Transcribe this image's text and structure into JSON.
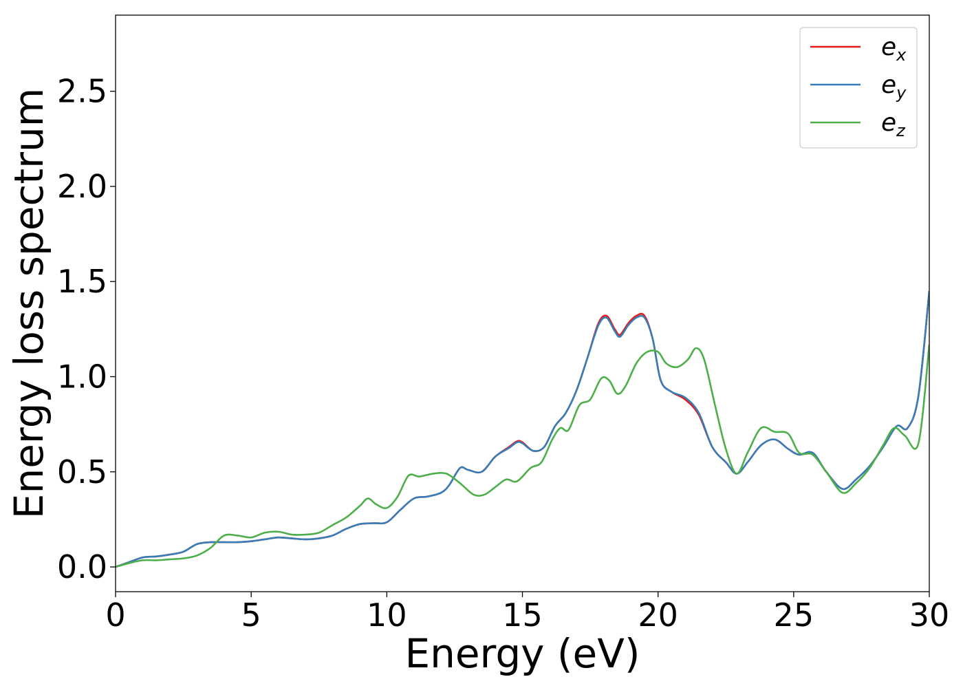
{
  "chart_data": {
    "type": "line",
    "title": "",
    "xlabel": "Energy (eV)",
    "ylabel": "Energy loss spectrum",
    "xlim": [
      0,
      30
    ],
    "ylim": [
      -0.13,
      2.9
    ],
    "xticks": [
      0,
      5,
      10,
      15,
      20,
      25,
      30
    ],
    "xtick_labels": [
      "0",
      "5",
      "10",
      "15",
      "20",
      "25",
      "30"
    ],
    "yticks": [
      0.0,
      0.5,
      1.0,
      1.5,
      2.0,
      2.5
    ],
    "ytick_labels": [
      "0.0",
      "0.5",
      "1.0",
      "1.5",
      "2.0",
      "2.5"
    ],
    "grid": false,
    "legend_position": "top-right",
    "colors": {
      "e_x": "#e41a1c",
      "e_y": "#377eb8",
      "e_z": "#4daf4a"
    },
    "series": [
      {
        "name": "e_x",
        "legend_main": "e",
        "legend_sub": "x",
        "color": "#e41a1c",
        "x": [
          0,
          0.5,
          1,
          1.5,
          2,
          2.5,
          3,
          3.5,
          4,
          4.5,
          5,
          5.5,
          6,
          6.5,
          7,
          7.5,
          8,
          8.5,
          9,
          9.5,
          10,
          10.5,
          11,
          11.5,
          12,
          12.3,
          12.7,
          13,
          13.5,
          14,
          14.5,
          14.8,
          15,
          15.4,
          15.8,
          16.2,
          16.6,
          17,
          17.4,
          17.8,
          18.1,
          18.4,
          18.6,
          18.9,
          19.2,
          19.5,
          19.8,
          20.1,
          20.5,
          21,
          21.5,
          22,
          22.5,
          22.9,
          23.3,
          23.8,
          24.3,
          24.8,
          25.2,
          25.7,
          26.2,
          26.8,
          27.3,
          27.8,
          28.3,
          28.8,
          29.2,
          29.6,
          30
        ],
        "y": [
          0.0,
          0.025,
          0.05,
          0.055,
          0.065,
          0.08,
          0.12,
          0.13,
          0.13,
          0.13,
          0.135,
          0.145,
          0.155,
          0.15,
          0.145,
          0.15,
          0.165,
          0.2,
          0.225,
          0.23,
          0.235,
          0.3,
          0.36,
          0.37,
          0.39,
          0.43,
          0.52,
          0.51,
          0.5,
          0.58,
          0.63,
          0.66,
          0.655,
          0.61,
          0.63,
          0.74,
          0.81,
          0.93,
          1.1,
          1.28,
          1.32,
          1.25,
          1.22,
          1.28,
          1.32,
          1.32,
          1.2,
          0.98,
          0.92,
          0.88,
          0.8,
          0.63,
          0.55,
          0.49,
          0.55,
          0.64,
          0.67,
          0.62,
          0.59,
          0.6,
          0.5,
          0.41,
          0.46,
          0.53,
          0.63,
          0.74,
          0.73,
          0.9,
          1.45
        ]
      },
      {
        "name": "e_y",
        "legend_main": "e",
        "legend_sub": "y",
        "color": "#377eb8",
        "x": [
          0,
          0.5,
          1,
          1.5,
          2,
          2.5,
          3,
          3.5,
          4,
          4.5,
          5,
          5.5,
          6,
          6.5,
          7,
          7.5,
          8,
          8.5,
          9,
          9.5,
          10,
          10.5,
          11,
          11.5,
          12,
          12.3,
          12.7,
          13,
          13.5,
          14,
          14.5,
          14.8,
          15,
          15.4,
          15.8,
          16.2,
          16.6,
          17,
          17.4,
          17.8,
          18.1,
          18.4,
          18.6,
          18.9,
          19.2,
          19.5,
          19.8,
          20.1,
          20.5,
          21,
          21.5,
          22,
          22.5,
          22.9,
          23.3,
          23.8,
          24.3,
          24.8,
          25.2,
          25.7,
          26.2,
          26.8,
          27.3,
          27.8,
          28.3,
          28.8,
          29.2,
          29.6,
          30
        ],
        "y": [
          0.0,
          0.025,
          0.05,
          0.055,
          0.065,
          0.08,
          0.12,
          0.13,
          0.13,
          0.13,
          0.135,
          0.145,
          0.155,
          0.15,
          0.145,
          0.15,
          0.165,
          0.2,
          0.225,
          0.23,
          0.235,
          0.3,
          0.36,
          0.37,
          0.39,
          0.43,
          0.52,
          0.51,
          0.5,
          0.58,
          0.625,
          0.655,
          0.65,
          0.61,
          0.63,
          0.74,
          0.81,
          0.93,
          1.1,
          1.27,
          1.31,
          1.24,
          1.21,
          1.27,
          1.31,
          1.31,
          1.2,
          0.98,
          0.92,
          0.89,
          0.81,
          0.63,
          0.55,
          0.49,
          0.55,
          0.64,
          0.67,
          0.62,
          0.59,
          0.6,
          0.5,
          0.41,
          0.46,
          0.53,
          0.63,
          0.74,
          0.73,
          0.9,
          1.45
        ]
      },
      {
        "name": "e_z",
        "legend_main": "e",
        "legend_sub": "z",
        "color": "#4daf4a",
        "x": [
          0,
          0.5,
          1,
          1.5,
          2,
          2.5,
          3,
          3.5,
          4,
          4.5,
          5,
          5.5,
          6,
          6.5,
          7,
          7.5,
          8,
          8.5,
          9,
          9.3,
          9.6,
          10,
          10.4,
          10.8,
          11.2,
          11.7,
          12.2,
          12.7,
          13.2,
          13.6,
          14,
          14.4,
          14.8,
          15.3,
          15.7,
          16.1,
          16.4,
          16.7,
          17.1,
          17.5,
          17.9,
          18.2,
          18.5,
          18.8,
          19.2,
          19.6,
          20,
          20.3,
          20.7,
          21.1,
          21.4,
          21.7,
          22.1,
          22.5,
          22.9,
          23.3,
          23.8,
          24.3,
          24.8,
          25.2,
          25.7,
          26.2,
          26.8,
          27.3,
          27.8,
          28.3,
          28.7,
          29.1,
          29.6,
          30
        ],
        "y": [
          0.0,
          0.02,
          0.035,
          0.035,
          0.04,
          0.045,
          0.06,
          0.1,
          0.165,
          0.165,
          0.155,
          0.18,
          0.185,
          0.17,
          0.17,
          0.18,
          0.22,
          0.26,
          0.32,
          0.36,
          0.33,
          0.31,
          0.37,
          0.48,
          0.475,
          0.49,
          0.49,
          0.44,
          0.38,
          0.38,
          0.42,
          0.46,
          0.45,
          0.52,
          0.55,
          0.67,
          0.73,
          0.72,
          0.85,
          0.88,
          0.99,
          0.98,
          0.91,
          0.95,
          1.07,
          1.13,
          1.13,
          1.07,
          1.05,
          1.09,
          1.15,
          1.09,
          0.85,
          0.62,
          0.49,
          0.6,
          0.73,
          0.71,
          0.7,
          0.6,
          0.59,
          0.5,
          0.39,
          0.44,
          0.52,
          0.64,
          0.73,
          0.69,
          0.65,
          1.17
        ]
      }
    ]
  }
}
